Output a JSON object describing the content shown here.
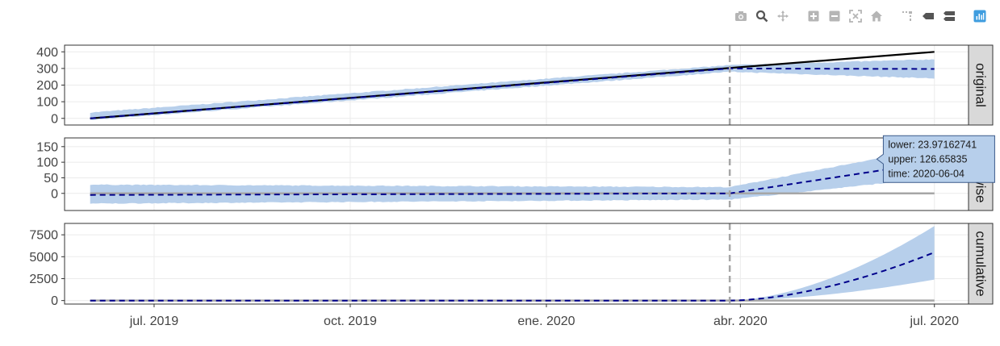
{
  "modebar": {
    "icons": [
      "camera-icon",
      "zoom-icon",
      "pan-icon",
      "zoom-in-icon",
      "zoom-out-icon",
      "autoscale-icon",
      "reset-axes-icon",
      "spike-lines-icon",
      "hover-closest-icon",
      "hover-compare-icon",
      "plotly-logo-icon"
    ]
  },
  "colors": {
    "band": "#b7cfeb",
    "mean": "#00008b",
    "actual": "#000000",
    "zero": "#a6a6a6",
    "event": "#a6a6a6",
    "strip_bg": "#d9d9d9",
    "grid": "#ebebeb"
  },
  "chart_data": {
    "type": "line",
    "x_axis": {
      "type": "date",
      "range": [
        "2019-05-20",
        "2020-07-17"
      ],
      "ticks": [
        {
          "date": "2019-07-01",
          "label": "jul. 2019"
        },
        {
          "date": "2019-10-01",
          "label": "oct. 2019"
        },
        {
          "date": "2020-01-01",
          "label": "ene. 2020"
        },
        {
          "date": "2020-04-01",
          "label": "abr. 2020"
        },
        {
          "date": "2020-07-01",
          "label": "jul. 2020"
        }
      ]
    },
    "event_date": "2020-03-27",
    "panels": [
      {
        "strip": "original",
        "ylim": [
          -40,
          440
        ],
        "yticks": [
          0,
          100,
          200,
          300,
          400
        ],
        "band": {
          "x": [
            "2019-06-01",
            "2020-03-27",
            "2020-07-01"
          ],
          "lower": [
            -10,
            280,
            240
          ],
          "upper": [
            35,
            320,
            355
          ]
        },
        "mean": {
          "x": [
            "2019-06-01",
            "2020-03-27",
            "2020-07-01"
          ],
          "y": [
            0,
            300,
            297
          ]
        },
        "actual": {
          "x": [
            "2019-06-01",
            "2020-07-01"
          ],
          "y": [
            0,
            400
          ]
        }
      },
      {
        "strip": "pointwise",
        "ylim": [
          -55,
          178
        ],
        "yticks": [
          0,
          50,
          100,
          150
        ],
        "zero_line": true,
        "band": {
          "x": [
            "2019-06-01",
            "2020-03-27",
            "2020-07-01"
          ],
          "lower": [
            -33,
            -20,
            50
          ],
          "upper": [
            28,
            20,
            148
          ]
        },
        "mean": {
          "x": [
            "2019-06-01",
            "2020-03-27",
            "2020-07-01"
          ],
          "y": [
            -5,
            0,
            100
          ]
        }
      },
      {
        "strip": "cumulative",
        "ylim": [
          -400,
          8800
        ],
        "yticks": [
          0,
          2500,
          5000,
          7500
        ],
        "yticklabels": [
          "0",
          "2500",
          "5000",
          "7500"
        ],
        "zero_line": true,
        "band": {
          "x": [
            "2019-06-01",
            "2020-03-27",
            "2020-07-01"
          ],
          "lower": [
            0,
            0,
            2400
          ],
          "upper": [
            0,
            0,
            8500
          ]
        },
        "mean": {
          "x": [
            "2019-06-01",
            "2020-03-27",
            "2020-07-01"
          ],
          "y": [
            0,
            0,
            5500
          ]
        }
      }
    ],
    "tooltip": {
      "panel": 1,
      "anchor_x": "2020-06-04",
      "anchor_y": 110,
      "lines": [
        "lower:   23.97162741",
        "upper:   126.65835",
        "time: 2020-06-04"
      ]
    }
  }
}
